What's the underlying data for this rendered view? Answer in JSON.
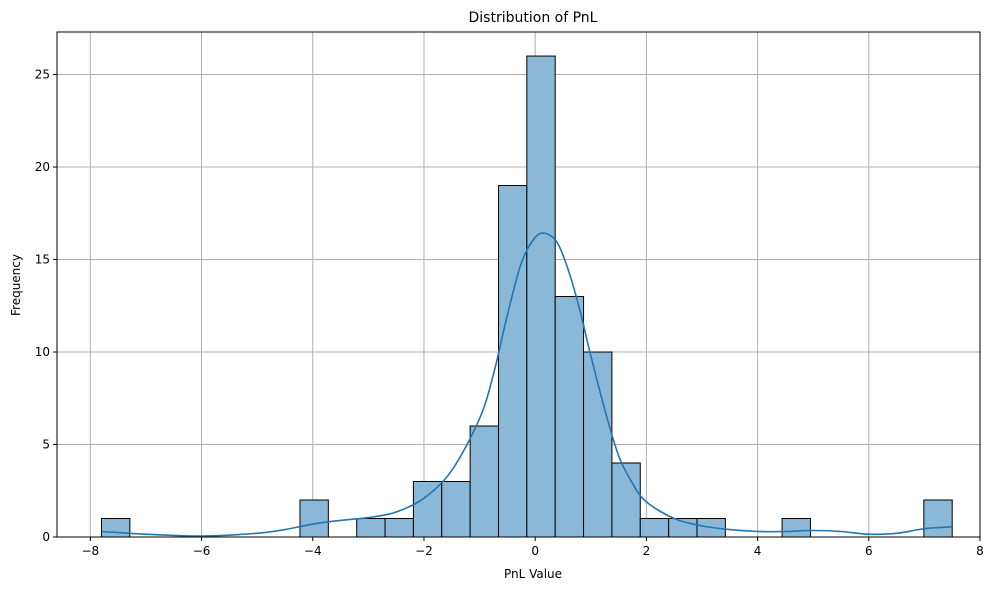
{
  "chart_data": {
    "type": "bar",
    "title": "Distribution of PnL",
    "xlabel": "PnL Value",
    "ylabel": "Frequency",
    "xlim": [
      -8.6,
      8.0
    ],
    "ylim": [
      0,
      27.3
    ],
    "xticks": [
      -8,
      -6,
      -4,
      -2,
      0,
      2,
      4,
      6,
      8
    ],
    "yticks": [
      0,
      5,
      10,
      15,
      20,
      25
    ],
    "grid": true,
    "bins": [
      {
        "x0": -7.8,
        "x1": -7.29,
        "count": 1
      },
      {
        "x0": -7.29,
        "x1": -6.78,
        "count": 0
      },
      {
        "x0": -6.78,
        "x1": -6.27,
        "count": 0
      },
      {
        "x0": -6.27,
        "x1": -5.76,
        "count": 0
      },
      {
        "x0": -5.76,
        "x1": -5.25,
        "count": 0
      },
      {
        "x0": -5.25,
        "x1": -4.74,
        "count": 0
      },
      {
        "x0": -4.74,
        "x1": -4.23,
        "count": 0
      },
      {
        "x0": -4.23,
        "x1": -3.72,
        "count": 2
      },
      {
        "x0": -3.72,
        "x1": -3.21,
        "count": 0
      },
      {
        "x0": -3.21,
        "x1": -2.7,
        "count": 1
      },
      {
        "x0": -2.7,
        "x1": -2.19,
        "count": 1
      },
      {
        "x0": -2.19,
        "x1": -1.68,
        "count": 3
      },
      {
        "x0": -1.68,
        "x1": -1.17,
        "count": 3
      },
      {
        "x0": -1.17,
        "x1": -0.66,
        "count": 6
      },
      {
        "x0": -0.66,
        "x1": -0.15,
        "count": 19
      },
      {
        "x0": -0.15,
        "x1": 0.36,
        "count": 26
      },
      {
        "x0": 0.36,
        "x1": 0.87,
        "count": 13
      },
      {
        "x0": 0.87,
        "x1": 1.38,
        "count": 10
      },
      {
        "x0": 1.38,
        "x1": 1.89,
        "count": 4
      },
      {
        "x0": 1.89,
        "x1": 2.4,
        "count": 1
      },
      {
        "x0": 2.4,
        "x1": 2.91,
        "count": 1
      },
      {
        "x0": 2.91,
        "x1": 3.42,
        "count": 1
      },
      {
        "x0": 3.42,
        "x1": 3.93,
        "count": 0
      },
      {
        "x0": 3.93,
        "x1": 4.44,
        "count": 0
      },
      {
        "x0": 4.44,
        "x1": 4.95,
        "count": 1
      },
      {
        "x0": 4.95,
        "x1": 5.46,
        "count": 0
      },
      {
        "x0": 5.46,
        "x1": 5.97,
        "count": 0
      },
      {
        "x0": 5.97,
        "x1": 6.48,
        "count": 0
      },
      {
        "x0": 6.48,
        "x1": 6.99,
        "count": 0
      },
      {
        "x0": 6.99,
        "x1": 7.5,
        "count": 2
      }
    ],
    "kde": {
      "x": [
        -7.8,
        -7.0,
        -6.0,
        -5.0,
        -4.5,
        -4.0,
        -3.5,
        -3.0,
        -2.5,
        -2.0,
        -1.5,
        -1.0,
        -0.75,
        -0.5,
        -0.25,
        0.0,
        0.2,
        0.4,
        0.6,
        0.8,
        1.0,
        1.25,
        1.5,
        1.75,
        2.0,
        2.5,
        3.0,
        3.5,
        4.0,
        4.5,
        5.0,
        5.5,
        6.0,
        6.5,
        7.0,
        7.5
      ],
      "y": [
        0.3,
        0.15,
        0.05,
        0.2,
        0.4,
        0.7,
        0.9,
        1.05,
        1.35,
        2.1,
        3.6,
        6.4,
        8.8,
        12.0,
        14.8,
        16.2,
        16.4,
        15.9,
        14.4,
        12.3,
        9.8,
        6.9,
        4.4,
        2.9,
        1.9,
        1.0,
        0.6,
        0.4,
        0.3,
        0.3,
        0.35,
        0.3,
        0.15,
        0.2,
        0.45,
        0.55
      ]
    },
    "colors": {
      "bar_fill": "#8cb8d8",
      "bar_edge": "#000000",
      "kde_line": "#1f77b4",
      "grid": "#b0b0b0"
    }
  }
}
